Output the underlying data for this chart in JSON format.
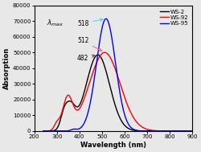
{
  "xlabel": "Wavelength (nm)",
  "ylabel": "Absorption",
  "xlim": [
    200,
    900
  ],
  "ylim": [
    0,
    80000
  ],
  "yticks": [
    0,
    10000,
    20000,
    30000,
    40000,
    50000,
    60000,
    70000,
    80000
  ],
  "xticks": [
    200,
    300,
    400,
    500,
    600,
    700,
    800,
    900
  ],
  "colors": {
    "WS-2": "#000000",
    "WS-92": "#ff0000",
    "WS-95": "#0000ff"
  },
  "arrow_colors": {
    "518": "#66ccff",
    "512": "#ff6688",
    "482": "#555555"
  },
  "background_color": "#e8e8e8",
  "legend_loc": "upper right"
}
